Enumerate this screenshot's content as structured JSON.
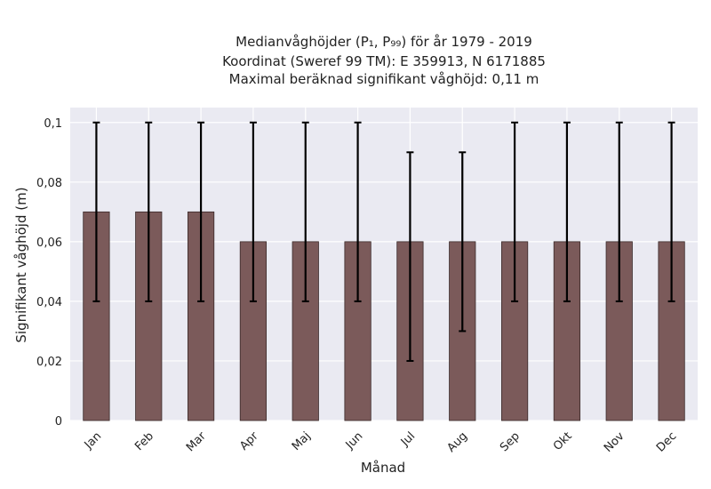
{
  "chart_data": {
    "type": "bar",
    "title_lines": [
      "Medianvåghöjder (P₁, P₉₉) för år 1979 - 2019",
      "Koordinat (Sweref 99 TM): E 359913, N 6171885",
      "Maximal beräknad signifikant våghöjd: 0,11 m"
    ],
    "xlabel": "Månad",
    "ylabel": "Signifikant våghöjd (m)",
    "categories": [
      "Jan",
      "Feb",
      "Mar",
      "Apr",
      "Maj",
      "Jun",
      "Jul",
      "Aug",
      "Sep",
      "Okt",
      "Nov",
      "Dec"
    ],
    "values": [
      0.07,
      0.07,
      0.07,
      0.06,
      0.06,
      0.06,
      0.06,
      0.06,
      0.06,
      0.06,
      0.06,
      0.06
    ],
    "error_low": [
      0.04,
      0.04,
      0.04,
      0.04,
      0.04,
      0.04,
      0.02,
      0.03,
      0.04,
      0.04,
      0.04,
      0.04
    ],
    "error_high": [
      0.1,
      0.1,
      0.1,
      0.1,
      0.1,
      0.1,
      0.09,
      0.09,
      0.1,
      0.1,
      0.1,
      0.1
    ],
    "ylim": [
      0,
      0.105
    ],
    "yticks": [
      0,
      0.02,
      0.04,
      0.06,
      0.08,
      0.1
    ],
    "ytick_labels": [
      "0",
      "0,02",
      "0,04",
      "0,06",
      "0,08",
      "0,1"
    ],
    "grid": true,
    "colors": {
      "background": "#eaeaf2",
      "bar": "#7b5a5a",
      "error": "#000000"
    }
  }
}
